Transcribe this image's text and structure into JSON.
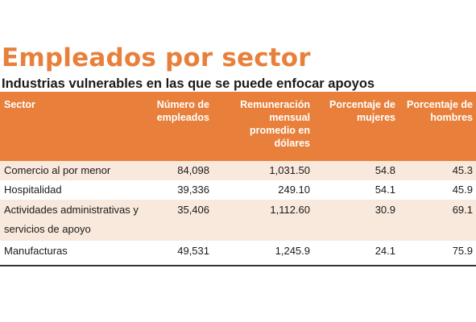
{
  "title": "Empleados por sector",
  "subtitle": "Industrias vulnerables en las que se puede enfocar apoyos",
  "colors": {
    "accent": "#e8803c",
    "row_shade": "#f8e9dc"
  },
  "table": {
    "headers": [
      "Sector",
      "Número de empleados",
      "Remuneración mensual promedio en dólares",
      "Porcentaje de mujeres",
      "Porcentaje de hombres"
    ],
    "rows": [
      {
        "sector": "Comercio al por menor",
        "empleados": "84,098",
        "remuneracion": "1,031.50",
        "mujeres": "54.8",
        "hombres": "45.3"
      },
      {
        "sector": "Hospitalidad",
        "empleados": "39,336",
        "remuneracion": "249.10",
        "mujeres": "54.1",
        "hombres": "45.9"
      },
      {
        "sector": "Actividades administrativas y servicios de apoyo",
        "empleados": "35,406",
        "remuneracion": "1,112.60",
        "mujeres": "30.9",
        "hombres": "69.1"
      },
      {
        "sector": "Manufacturas",
        "empleados": "49,531",
        "remuneracion": "1,245.9",
        "mujeres": "24.1",
        "hombres": "75.9"
      }
    ]
  }
}
